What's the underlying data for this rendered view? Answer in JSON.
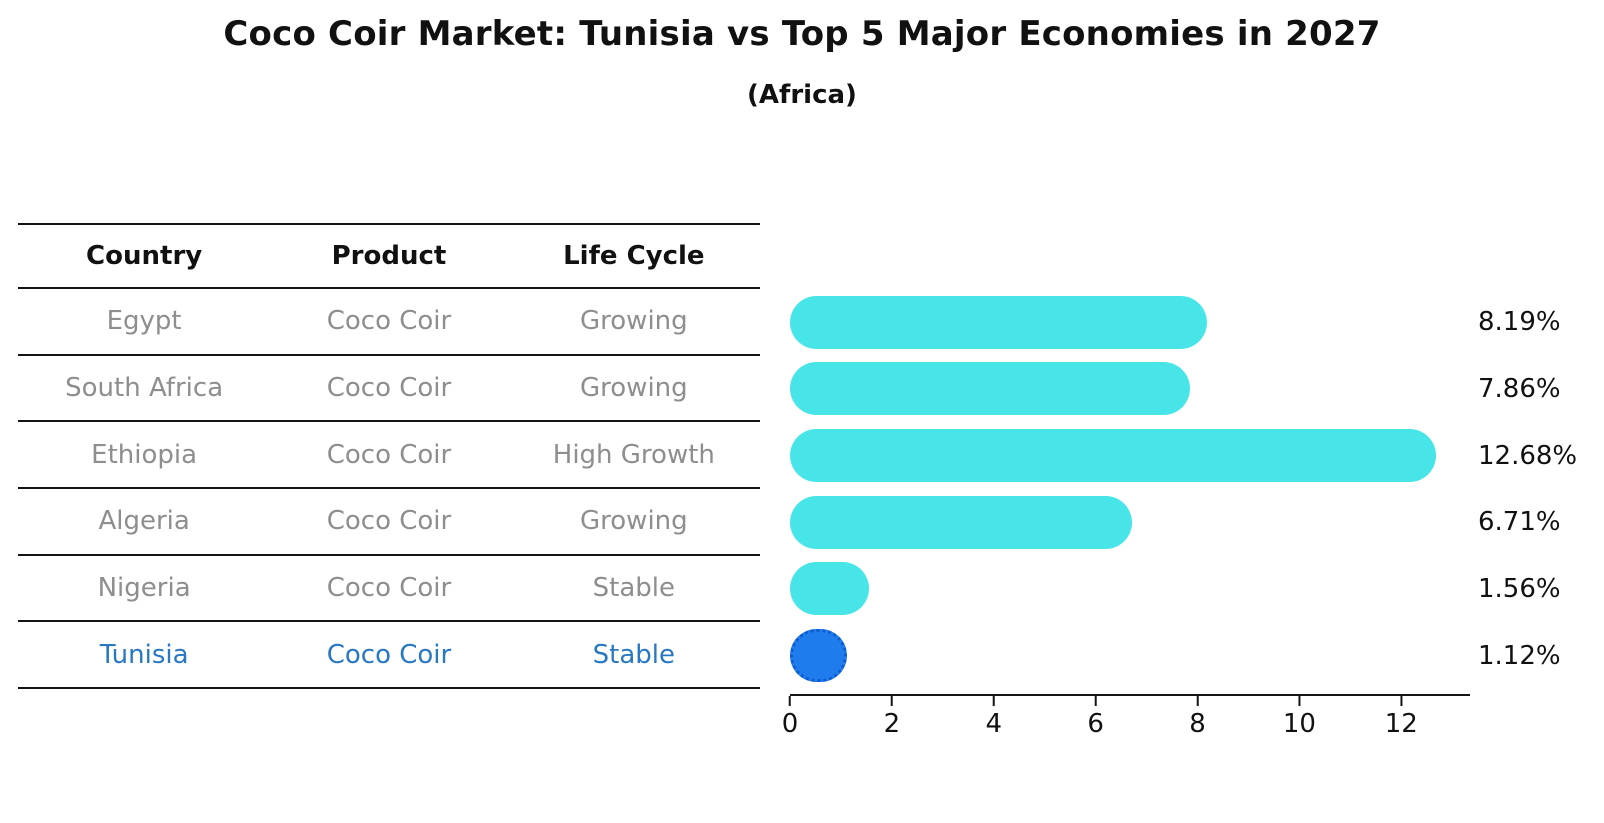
{
  "title": "Coco Coir Market: Tunisia vs Top 5 Major Economies in 2027",
  "subtitle": "(Africa)",
  "table": {
    "headers": [
      "Country",
      "Product",
      "Life Cycle"
    ],
    "rows": [
      {
        "country": "Egypt",
        "product": "Coco Coir",
        "life_cycle": "Growing",
        "highlight": false
      },
      {
        "country": "South Africa",
        "product": "Coco Coir",
        "life_cycle": "Growing",
        "highlight": false
      },
      {
        "country": "Ethiopia",
        "product": "Coco Coir",
        "life_cycle": "High Growth",
        "highlight": false
      },
      {
        "country": "Algeria",
        "product": "Coco Coir",
        "life_cycle": "Growing",
        "highlight": false
      },
      {
        "country": "Nigeria",
        "product": "Coco Coir",
        "life_cycle": "Stable",
        "highlight": false
      },
      {
        "country": "Tunisia",
        "product": "Coco Coir",
        "life_cycle": "Stable",
        "highlight": true
      }
    ]
  },
  "chart_data": {
    "type": "bar",
    "orientation": "horizontal",
    "title": "Coco Coir Market: Tunisia vs Top 5 Major Economies in 2027",
    "subtitle": "(Africa)",
    "categories": [
      "Egypt",
      "South Africa",
      "Ethiopia",
      "Algeria",
      "Nigeria",
      "Tunisia"
    ],
    "values": [
      8.19,
      7.86,
      12.68,
      6.71,
      1.56,
      1.12
    ],
    "value_labels": [
      "8.19%",
      "7.86%",
      "12.68%",
      "6.71%",
      "1.56%",
      "1.12%"
    ],
    "highlight_index": 5,
    "x_ticks": [
      0,
      2,
      4,
      6,
      8,
      10,
      12
    ],
    "xlim": [
      0,
      13.35
    ],
    "grid": false,
    "legend": "none",
    "xlabel": "",
    "ylabel": ""
  },
  "colors": {
    "bar_default": "#48E5E8",
    "bar_highlight": "#1E7CEC",
    "bar_highlight_edge": "#0D5BD0",
    "highlight_text": "#2878C4",
    "row_text": "#8E8E8E",
    "header_text": "#111111",
    "axis": "#141414"
  }
}
